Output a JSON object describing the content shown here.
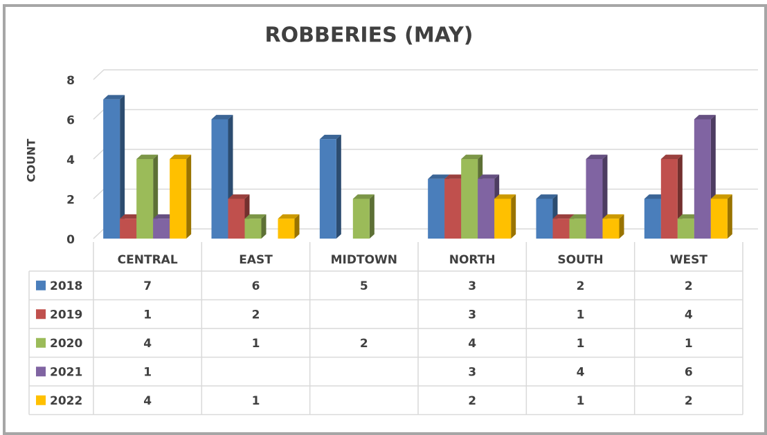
{
  "chart_data": {
    "type": "bar3d",
    "title": "ROBBERIES (MAY)",
    "y_label": "COUNT",
    "categories": [
      "CENTRAL",
      "EAST",
      "MIDTOWN",
      "NORTH",
      "SOUTH",
      "WEST"
    ],
    "series": [
      {
        "name": "2018",
        "color": "#4a7ebb",
        "values": [
          7,
          6,
          5,
          3,
          2,
          2
        ]
      },
      {
        "name": "2019",
        "color": "#c0504d",
        "values": [
          1,
          2,
          null,
          3,
          1,
          4
        ]
      },
      {
        "name": "2020",
        "color": "#9bbb59",
        "values": [
          4,
          1,
          2,
          4,
          1,
          1
        ]
      },
      {
        "name": "2021",
        "color": "#8064a2",
        "values": [
          1,
          null,
          null,
          3,
          4,
          6
        ]
      },
      {
        "name": "2022",
        "color": "#ffc000",
        "values": [
          4,
          1,
          null,
          2,
          1,
          2
        ]
      }
    ],
    "ylim": [
      0,
      8
    ],
    "yticks": [
      0,
      2,
      4,
      6,
      8
    ],
    "grid": true,
    "data_table": true
  }
}
